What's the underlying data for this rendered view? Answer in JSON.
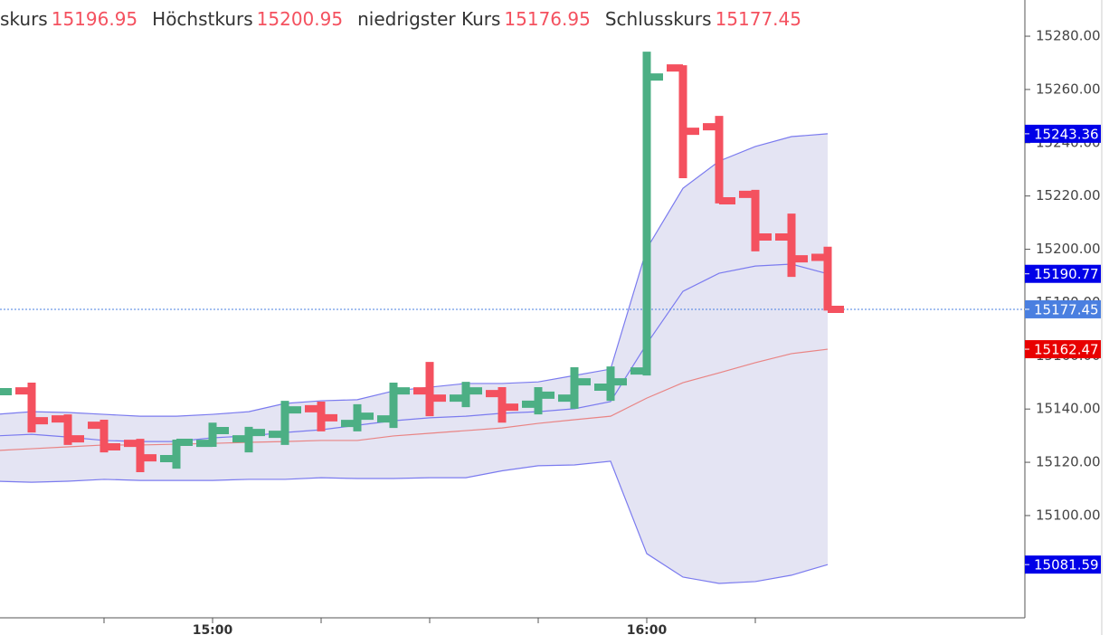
{
  "chart_data": {
    "type": "ohlc",
    "open_label": "skurs",
    "high_label": "Höchstkurs",
    "low_label": "niedrigster Kurs",
    "close_label": "Schlusskurs",
    "categories": [
      null,
      null,
      null,
      null,
      null,
      null,
      "15:00",
      null,
      null,
      null,
      null,
      null,
      null,
      null,
      null,
      null,
      null,
      null,
      "16:00",
      null,
      null,
      null,
      null,
      null
    ],
    "open": [
      15135.6,
      15146.8,
      15136.3,
      15133.9,
      15127.1,
      15121.4,
      15127.1,
      15128.8,
      15130.5,
      15140.1,
      15134.6,
      15136.3,
      15146.8,
      15144.1,
      15145.8,
      15141.8,
      15144.1,
      15148.2,
      15154.3,
      15268.1,
      15246.0,
      15220.6,
      15204.6,
      15196.95
    ],
    "high": [
      15148.2,
      15149.9,
      15138.0,
      15136.0,
      15128.8,
      15128.5,
      15134.9,
      15133.3,
      15143.1,
      15142.8,
      15141.8,
      15149.9,
      15157.7,
      15150.2,
      15148.2,
      15148.2,
      15155.7,
      15156.0,
      15274.2,
      15269.1,
      15250.1,
      15222.3,
      15213.4,
      15200.95
    ],
    "low": [
      15132.2,
      15131.2,
      15126.5,
      15123.7,
      15116.3,
      15117.6,
      15125.8,
      15123.7,
      15126.5,
      15131.6,
      15131.6,
      15132.9,
      15137.3,
      15140.7,
      15134.9,
      15138.0,
      15140.1,
      15143.1,
      15152.6,
      15226.7,
      15217.2,
      15199.2,
      15189.6,
      15176.95
    ],
    "close": [
      15146.5,
      15135.6,
      15128.8,
      15125.8,
      15121.7,
      15127.5,
      15131.9,
      15131.2,
      15139.7,
      15136.7,
      15137.3,
      15146.8,
      15144.1,
      15146.8,
      15140.7,
      15145.2,
      15150.2,
      15150.2,
      15264.7,
      15244.3,
      15218.2,
      15204.6,
      15196.4,
      15177.45
    ],
    "up_color": "#4caf84",
    "down_color": "#f4515f",
    "header_label_color": "#333333",
    "header_value_color": "#f4515f",
    "last_price_color": "#4a7fe0",
    "bands": {
      "color": "#7b7bef",
      "fill": "#e4e4f3",
      "label_color": "#0000e8",
      "upper": [
        15138.0,
        15139.0,
        15138.7,
        15138.0,
        15137.3,
        15137.3,
        15138.0,
        15139.0,
        15142.1,
        15143.1,
        15143.5,
        15146.8,
        15148.2,
        15149.6,
        15149.6,
        15150.2,
        15152.6,
        15155.0,
        15200.2,
        15222.9,
        15233.1,
        15238.6,
        15242.3,
        15243.36
      ],
      "middle": [
        15129.9,
        15130.5,
        15129.5,
        15128.2,
        15127.8,
        15127.8,
        15129.2,
        15129.9,
        15131.2,
        15132.2,
        15133.9,
        15135.6,
        15136.7,
        15137.3,
        15138.4,
        15139.0,
        15140.1,
        15142.8,
        15164.5,
        15184.2,
        15191.0,
        15193.7,
        15194.4,
        15190.77
      ],
      "lower": [
        15112.9,
        15112.5,
        15112.9,
        15113.6,
        15113.2,
        15113.2,
        15113.2,
        15113.6,
        15113.6,
        15114.2,
        15113.9,
        15113.9,
        15114.2,
        15114.2,
        15116.8,
        15118.7,
        15119.0,
        15120.4,
        15085.7,
        15076.9,
        15074.5,
        15075.2,
        15077.6,
        15081.59
      ]
    },
    "average": {
      "color": "#e98484",
      "label_color": "#e80000",
      "values": [
        15124.4,
        15125.1,
        15125.8,
        15126.5,
        15126.5,
        15126.8,
        15127.1,
        15127.5,
        15127.8,
        15128.2,
        15128.2,
        15129.9,
        15130.9,
        15131.9,
        15132.9,
        15134.6,
        15136.0,
        15137.3,
        15144.1,
        15149.9,
        15153.6,
        15157.4,
        15160.8,
        15162.47
      ]
    },
    "ylim": [
      15061.6,
      15293.6
    ],
    "yticks": [
      {
        "value": 15100,
        "label": "15100.00"
      },
      {
        "value": 15120,
        "label": "15120.00"
      },
      {
        "value": 15140,
        "label": "15140.00"
      },
      {
        "value": 15160,
        "label": "15160.00"
      },
      {
        "value": 15180,
        "label": "15180.00"
      },
      {
        "value": 15200,
        "label": "15200.00"
      },
      {
        "value": 15220,
        "label": "15220.00"
      },
      {
        "value": 15240,
        "label": "15240.00"
      },
      {
        "value": 15260,
        "label": "15260.00"
      },
      {
        "value": 15280,
        "label": "15280.00"
      }
    ]
  }
}
